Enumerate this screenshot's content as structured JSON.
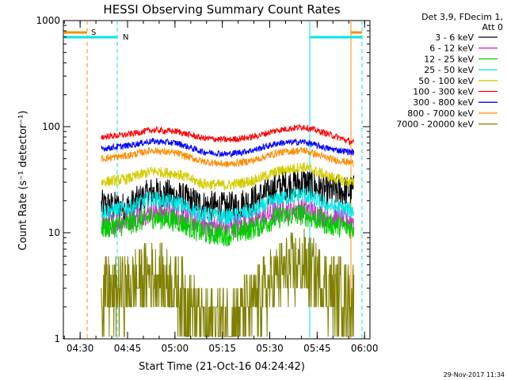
{
  "chart_data": {
    "type": "line",
    "title": "HESSI Observing Summary Count Rates",
    "xlabel": "Start Time (21-Oct-16 04:24:42)",
    "ylabel": "Count Rate (s⁻¹ detector⁻¹)",
    "yscale": "log",
    "ylim": [
      1,
      1000
    ],
    "xlim_minutes": [
      0,
      97
    ],
    "x_tick_labels": [
      "04:30",
      "04:45",
      "05:00",
      "05:15",
      "05:30",
      "05:45",
      "06:00"
    ],
    "x_tick_minutes": [
      5.3,
      20.3,
      35.3,
      50.3,
      65.3,
      80.3,
      95.3
    ],
    "y_tick_labels": [
      "1",
      "10",
      "100",
      "1000"
    ],
    "y_tick_values": [
      1,
      10,
      100,
      1000
    ],
    "legend_position": "right",
    "legend_header": [
      "Det 3,9, FDecim 1,",
      "Att 0"
    ],
    "series": [
      {
        "name": "3 - 6 keV",
        "color": "#000000",
        "x": [
          12,
          20,
          28,
          36,
          44,
          52,
          60,
          68,
          76,
          84,
          92
        ],
        "y": [
          18,
          17,
          24,
          22,
          18,
          17,
          20,
          27,
          30,
          24,
          25
        ]
      },
      {
        "name": "6 - 12 keV",
        "color": "#cc33cc",
        "x": [
          12,
          20,
          28,
          36,
          44,
          52,
          60,
          68,
          76,
          84,
          92
        ],
        "y": [
          12,
          13,
          16,
          15,
          12,
          11,
          13,
          16,
          17,
          14,
          13
        ]
      },
      {
        "name": "12 - 25 keV",
        "color": "#00cc00",
        "x": [
          12,
          20,
          28,
          36,
          44,
          52,
          60,
          68,
          76,
          84,
          92
        ],
        "y": [
          11,
          12,
          14,
          13,
          10,
          9.5,
          11,
          14,
          15,
          12,
          11
        ]
      },
      {
        "name": "25 - 50 keV",
        "color": "#00e6e6",
        "x": [
          12,
          20,
          28,
          36,
          44,
          52,
          60,
          68,
          76,
          84,
          92
        ],
        "y": [
          16,
          17,
          21,
          19,
          15,
          14,
          16,
          21,
          23,
          18,
          16
        ]
      },
      {
        "name": "50 - 100 keV",
        "color": "#d4cc00",
        "x": [
          12,
          20,
          28,
          36,
          44,
          52,
          60,
          68,
          76,
          84,
          92
        ],
        "y": [
          30,
          32,
          38,
          36,
          29,
          28,
          31,
          38,
          42,
          34,
          29
        ]
      },
      {
        "name": "100 - 300 keV",
        "color": "#ff0000",
        "x": [
          12,
          20,
          28,
          36,
          44,
          52,
          60,
          68,
          76,
          84,
          92
        ],
        "y": [
          80,
          84,
          93,
          90,
          78,
          75,
          80,
          93,
          100,
          85,
          70
        ]
      },
      {
        "name": "300 - 800 keV",
        "color": "#0000ff",
        "x": [
          12,
          20,
          28,
          36,
          44,
          52,
          60,
          68,
          76,
          84,
          92
        ],
        "y": [
          62,
          66,
          73,
          70,
          58,
          55,
          60,
          70,
          72,
          62,
          57
        ]
      },
      {
        "name": "800 - 7000 keV",
        "color": "#ff8c00",
        "x": [
          12,
          20,
          28,
          36,
          44,
          52,
          60,
          68,
          76,
          84,
          92
        ],
        "y": [
          50,
          53,
          60,
          56,
          47,
          44,
          48,
          57,
          60,
          50,
          45
        ]
      },
      {
        "name": "7000 - 20000 keV",
        "color": "#808000",
        "x": [
          12,
          20,
          28,
          36,
          44,
          52,
          60,
          68,
          76,
          84,
          92
        ],
        "y": [
          2.5,
          3,
          4,
          3,
          1.5,
          1.5,
          2,
          4,
          5,
          3,
          2.5
        ]
      }
    ],
    "annotations": [
      {
        "label": "S",
        "color": "#ff8c00"
      },
      {
        "label": "N",
        "color": "#00e6e6"
      }
    ],
    "footer_date": "29-Nov-2017 11:34"
  }
}
